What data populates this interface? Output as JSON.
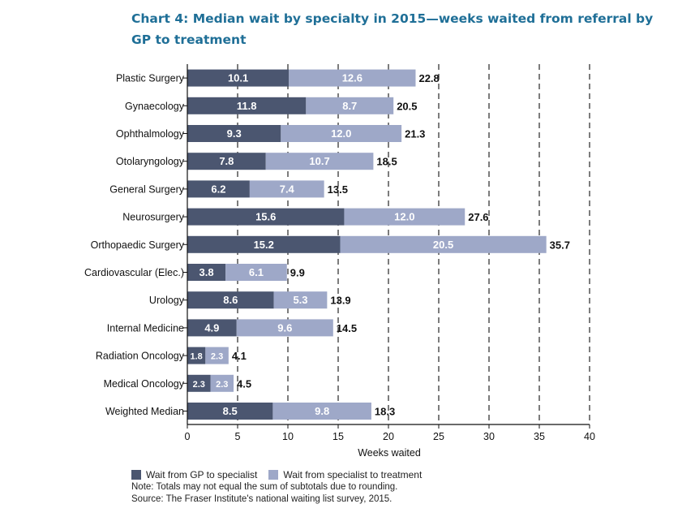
{
  "title": "Chart 4: Median wait by specialty in 2015—weeks waited from referral by GP to treatment",
  "legend": {
    "series1": "Wait from GP to specialist",
    "series2": "Wait from specialist to treatment"
  },
  "notes": {
    "note": "Note: Totals may not equal the sum of subtotals due to rounding.",
    "source": "Source: The Fraser Institute's national waiting list survey, 2015."
  },
  "colors": {
    "series1": "#4b5670",
    "series2": "#9ea8c8",
    "title": "#1f6f97"
  },
  "chart_data": {
    "type": "bar",
    "orientation": "horizontal",
    "stacked": true,
    "title": "Chart 4: Median wait by specialty in 2015—weeks waited from referral by GP to treatment",
    "xlabel": "Weeks waited",
    "ylabel": "",
    "xlim": [
      0,
      40
    ],
    "xticks": [
      "0",
      "5",
      "10",
      "15",
      "20",
      "25",
      "30",
      "35",
      "40"
    ],
    "grid": "vertical dashed lines",
    "legend_position": "bottom-left",
    "categories": [
      "Plastic Surgery",
      "Gynaecology",
      "Ophthalmology",
      "Otolaryngology",
      "General Surgery",
      "Neurosurgery",
      "Orthopaedic Surgery",
      "Cardiovascular (Elec.)",
      "Urology",
      "Internal Medicine",
      "Radiation Oncology",
      "Medical Oncology",
      "Weighted Median"
    ],
    "series": [
      {
        "name": "Wait from GP to specialist",
        "values": [
          10.1,
          11.8,
          9.3,
          7.8,
          6.2,
          15.6,
          15.2,
          3.8,
          8.6,
          4.9,
          1.8,
          2.3,
          8.5
        ]
      },
      {
        "name": "Wait from specialist to treatment",
        "values": [
          12.6,
          8.7,
          12.0,
          10.7,
          7.4,
          12.0,
          20.5,
          6.1,
          5.3,
          9.6,
          2.3,
          2.3,
          9.8
        ]
      }
    ],
    "series1_labels": [
      "10.1",
      "11.8",
      "9.3",
      "7.8",
      "6.2",
      "15.6",
      "15.2",
      "3.8",
      "8.6",
      "4.9",
      "1.8",
      "2.3",
      "8.5"
    ],
    "series2_labels": [
      "12.6",
      "8.7",
      "12.0",
      "10.7",
      "7.4",
      "12.0",
      "20.5",
      "6.1",
      "5.3",
      "9.6",
      "2.3",
      "2.3",
      "9.8"
    ],
    "totals": [
      22.8,
      20.5,
      21.3,
      18.5,
      13.5,
      27.6,
      35.7,
      9.9,
      13.9,
      14.5,
      4.1,
      4.5,
      18.3
    ],
    "total_labels": [
      "22.8",
      "20.5",
      "21.3",
      "18.5",
      "13.5",
      "27.6",
      "35.7",
      "9.9",
      "13.9",
      "14.5",
      "4.1",
      "4.5",
      "18.3"
    ]
  }
}
